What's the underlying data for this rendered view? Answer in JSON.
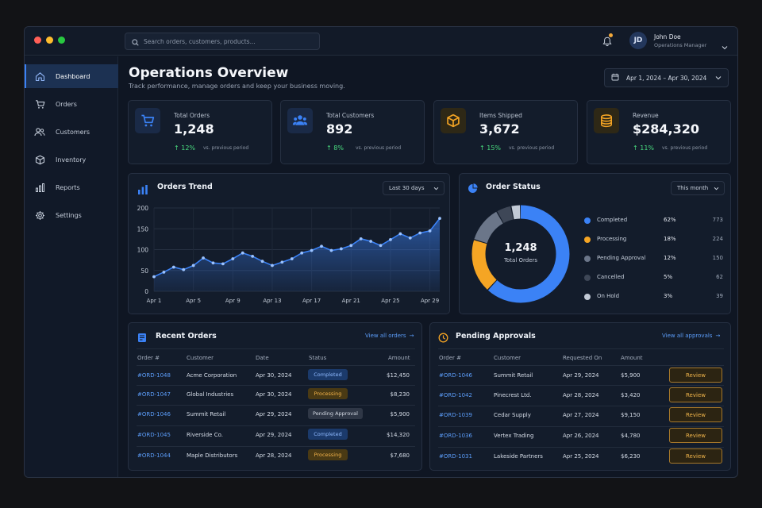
{
  "window": {
    "dots": [
      "#ff5f57",
      "#febc2e",
      "#28c840"
    ]
  },
  "search": {
    "placeholder": "Search orders, customers, products..."
  },
  "user": {
    "initials": "JD",
    "name": "John Doe",
    "role": "Operations Manager"
  },
  "sidebar": {
    "items": [
      {
        "label": "Dashboard",
        "icon": "home-icon",
        "active": true
      },
      {
        "label": "Orders",
        "icon": "cart-icon",
        "active": false
      },
      {
        "label": "Customers",
        "icon": "users-icon",
        "active": false
      },
      {
        "label": "Inventory",
        "icon": "box-icon",
        "active": false
      },
      {
        "label": "Reports",
        "icon": "bar-chart-icon",
        "active": false
      },
      {
        "label": "Settings",
        "icon": "gear-icon",
        "active": false
      }
    ]
  },
  "header": {
    "title": "Operations Overview",
    "subtitle": "Track performance, manage orders and keep your business moving.",
    "date_range": "Apr 1, 2024 – Apr 30, 2024"
  },
  "stats": [
    {
      "label": "Total Orders",
      "value": "1,248",
      "change": "12%",
      "note": "vs. previous period",
      "icon": "cart-icon",
      "color": "#3b82f6",
      "bg": "#1a2a47"
    },
    {
      "label": "Total Customers",
      "value": "892",
      "change": "8%",
      "note": "vs. previous period",
      "icon": "users-icon",
      "color": "#3b82f6",
      "bg": "#1a2a47"
    },
    {
      "label": "Items Shipped",
      "value": "3,672",
      "change": "15%",
      "note": "vs. previous period",
      "icon": "box-icon",
      "color": "#f5a524",
      "bg": "#2e2816"
    },
    {
      "label": "Revenue",
      "value": "$284,320",
      "change": "11%",
      "note": "vs. previous period",
      "icon": "coins-icon",
      "color": "#f5a524",
      "bg": "#2e2816"
    }
  ],
  "trend": {
    "title": "Orders Trend",
    "range": "Last 30 days",
    "chart_data": {
      "type": "area",
      "title": "Orders Trend",
      "x": [
        "Apr 1",
        "Apr 2",
        "Apr 3",
        "Apr 4",
        "Apr 5",
        "Apr 6",
        "Apr 7",
        "Apr 8",
        "Apr 9",
        "Apr 10",
        "Apr 11",
        "Apr 12",
        "Apr 13",
        "Apr 14",
        "Apr 15",
        "Apr 16",
        "Apr 17",
        "Apr 18",
        "Apr 19",
        "Apr 20",
        "Apr 21",
        "Apr 22",
        "Apr 23",
        "Apr 24",
        "Apr 25",
        "Apr 26",
        "Apr 27",
        "Apr 28",
        "Apr 29",
        "Apr 30"
      ],
      "xticks": [
        "Apr 1",
        "Apr 5",
        "Apr 9",
        "Apr 13",
        "Apr 17",
        "Apr 21",
        "Apr 25",
        "Apr 29"
      ],
      "values": [
        35,
        46,
        58,
        52,
        62,
        80,
        68,
        66,
        78,
        92,
        84,
        72,
        62,
        70,
        78,
        92,
        98,
        108,
        98,
        102,
        110,
        126,
        120,
        110,
        124,
        138,
        128,
        140,
        145,
        175
      ],
      "ylim": [
        0,
        200
      ],
      "yticks": [
        0,
        50,
        100,
        150,
        200
      ],
      "grid": true,
      "color": "#3b82f6"
    }
  },
  "status": {
    "title": "Order Status",
    "range": "This month",
    "total": "1,248",
    "total_label": "Total Orders",
    "chart_data": {
      "type": "pie",
      "title": "Order Status",
      "categories": [
        "Completed",
        "Processing",
        "Pending Approval",
        "Cancelled",
        "On Hold"
      ],
      "values": [
        773,
        224,
        150,
        62,
        39
      ],
      "percents": [
        "62%",
        "18%",
        "12%",
        "5%",
        "3%"
      ],
      "colors": [
        "#3b82f6",
        "#f5a524",
        "#6b7689",
        "#3e4757",
        "#c2cad6"
      ],
      "legend": "right"
    }
  },
  "recent": {
    "title": "Recent Orders",
    "view_all": "View all orders",
    "columns": [
      "Order #",
      "Customer",
      "Date",
      "Status",
      "Amount"
    ],
    "rows": [
      {
        "id": "#ORD-1048",
        "customer": "Acme Corporation",
        "date": "Apr 30, 2024",
        "status": "Completed",
        "status_key": "completed",
        "amount": "$12,450"
      },
      {
        "id": "#ORD-1047",
        "customer": "Global Industries",
        "date": "Apr 30, 2024",
        "status": "Processing",
        "status_key": "processing",
        "amount": "$8,230"
      },
      {
        "id": "#ORD-1046",
        "customer": "Summit Retail",
        "date": "Apr 29, 2024",
        "status": "Pending Approval",
        "status_key": "pending",
        "amount": "$5,900"
      },
      {
        "id": "#ORD-1045",
        "customer": "Riverside Co.",
        "date": "Apr 29, 2024",
        "status": "Completed",
        "status_key": "completed",
        "amount": "$14,320"
      },
      {
        "id": "#ORD-1044",
        "customer": "Maple Distributors",
        "date": "Apr 28, 2024",
        "status": "Processing",
        "status_key": "processing",
        "amount": "$7,680"
      }
    ]
  },
  "approvals": {
    "title": "Pending Approvals",
    "view_all": "View all approvals",
    "columns": [
      "Order #",
      "Customer",
      "Requested On",
      "Amount"
    ],
    "action_label": "Review",
    "rows": [
      {
        "id": "#ORD-1046",
        "customer": "Summit Retail",
        "date": "Apr 29, 2024",
        "amount": "$5,900"
      },
      {
        "id": "#ORD-1042",
        "customer": "Pinecrest Ltd.",
        "date": "Apr 28, 2024",
        "amount": "$3,420"
      },
      {
        "id": "#ORD-1039",
        "customer": "Cedar Supply",
        "date": "Apr 27, 2024",
        "amount": "$9,150"
      },
      {
        "id": "#ORD-1036",
        "customer": "Vertex Trading",
        "date": "Apr 26, 2024",
        "amount": "$4,780"
      },
      {
        "id": "#ORD-1031",
        "customer": "Lakeside Partners",
        "date": "Apr 25, 2024",
        "amount": "$6,230"
      }
    ]
  }
}
